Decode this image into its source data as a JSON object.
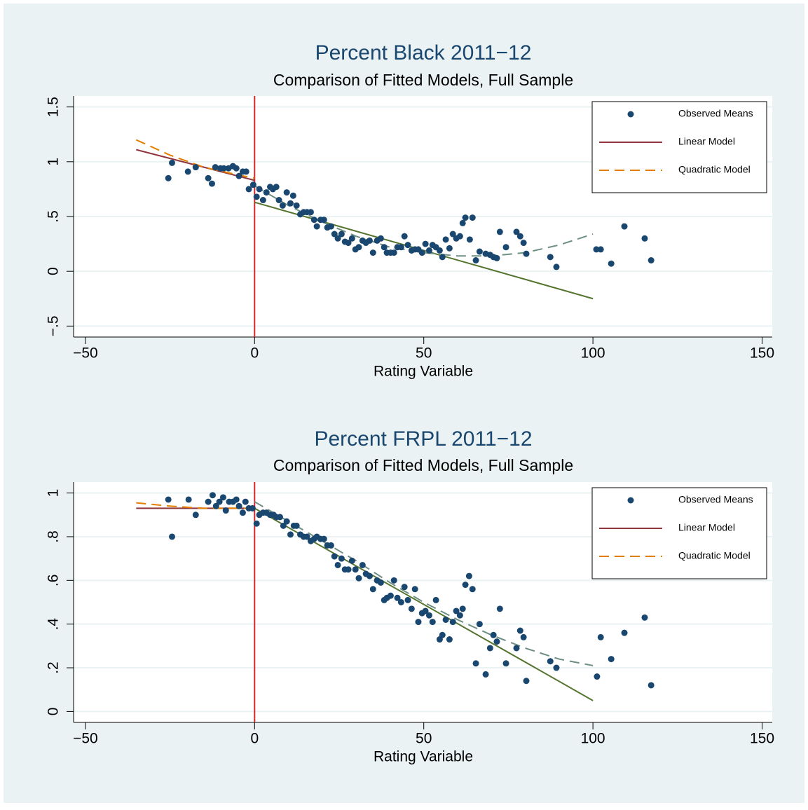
{
  "chart_data": [
    {
      "type": "scatter",
      "title": "Percent Black 2011−12",
      "subtitle": "Comparison of Fitted Models, Full Sample",
      "x_label": "Rating Variable",
      "xlim": [
        -53.5,
        153
      ],
      "ylim": [
        -0.6,
        1.6
      ],
      "xticks": [
        {
          "value": -50,
          "label": "−50"
        },
        0,
        50,
        100,
        150
      ],
      "yticks": [
        {
          "value": -0.5,
          "label": "−.5"
        },
        0,
        {
          "value": 0.5,
          "label": ".5"
        },
        1,
        1.5
      ],
      "grid": true,
      "legend": "top-right",
      "xline": 0,
      "xline_color": "#d7262b",
      "series": [
        {
          "name": "Observed Means",
          "type": "scatter",
          "color": "#1a476f",
          "x": [
            -25.5,
            -24.4,
            -19.7,
            -17.4,
            -13.7,
            -12.6,
            -11.6,
            -10.1,
            -9.1,
            -7.7,
            -6.4,
            -5.4,
            -4.6,
            -3.5,
            -2.5,
            -1.7,
            -0.4,
            0.6,
            1.4,
            2.5,
            3.5,
            4.6,
            5.4,
            6.4,
            7.2,
            8.3,
            9.5,
            10.6,
            11.4,
            12.4,
            13.5,
            14.5,
            15.5,
            16.6,
            17.6,
            18.4,
            19.5,
            20.5,
            21.5,
            22.6,
            23.6,
            24.6,
            25.7,
            26.7,
            27.7,
            28.8,
            29.8,
            30.8,
            31.9,
            32.9,
            34.0,
            35.0,
            36.2,
            37.3,
            38.3,
            39.1,
            40.2,
            41.2,
            42.2,
            43.3,
            44.3,
            45.3,
            46.4,
            47.4,
            48.4,
            49.5,
            50.5,
            51.6,
            52.6,
            53.6,
            54.7,
            55.5,
            56.5,
            57.6,
            58.6,
            59.6,
            60.7,
            61.5,
            62.3,
            63.6,
            64.4,
            65.4,
            66.5,
            68.3,
            69.6,
            70.6,
            71.6,
            72.5,
            74.3,
            77.4,
            78.5,
            79.5,
            80.3,
            87.4,
            89.2,
            101,
            102.3,
            105.4,
            109.3,
            115.3,
            117.2
          ],
          "values": [
            0.85,
            0.99,
            0.91,
            0.95,
            0.85,
            0.8,
            0.95,
            0.94,
            0.94,
            0.94,
            0.96,
            0.94,
            0.87,
            0.91,
            0.91,
            0.75,
            0.79,
            0.68,
            0.75,
            0.65,
            0.72,
            0.77,
            0.75,
            0.77,
            0.65,
            0.6,
            0.72,
            0.62,
            0.69,
            0.6,
            0.52,
            0.54,
            0.54,
            0.54,
            0.47,
            0.41,
            0.47,
            0.47,
            0.4,
            0.41,
            0.34,
            0.3,
            0.34,
            0.27,
            0.26,
            0.3,
            0.2,
            0.22,
            0.28,
            0.26,
            0.28,
            0.17,
            0.28,
            0.3,
            0.22,
            0.17,
            0.17,
            0.17,
            0.22,
            0.22,
            0.32,
            0.24,
            0.19,
            0.2,
            0.2,
            0.17,
            0.25,
            0.19,
            0.24,
            0.22,
            0.19,
            0.13,
            0.29,
            0.21,
            0.34,
            0.3,
            0.32,
            0.44,
            0.49,
            0.29,
            0.49,
            0.1,
            0.18,
            0.16,
            0.15,
            0.13,
            0.12,
            0.36,
            0.22,
            0.36,
            0.32,
            0.26,
            0.16,
            0.13,
            0.04,
            0.2,
            0.2,
            0.07,
            0.41,
            0.3,
            0.1
          ]
        },
        {
          "name": "Linear Model",
          "type": "line",
          "color": "#90353b",
          "x": [
            -35,
            0
          ],
          "values": [
            1.11,
            0.83
          ]
        },
        {
          "name": "Quadratic Model",
          "type": "line",
          "dash": true,
          "color": "#e37e00",
          "x": [
            -35,
            -25,
            -15,
            -5,
            0
          ],
          "values": [
            1.2,
            1.06,
            0.95,
            0.88,
            0.85
          ]
        },
        {
          "type": "line",
          "color": "#55752f",
          "x": [
            0,
            100
          ],
          "values": [
            0.63,
            -0.25
          ]
        },
        {
          "type": "line",
          "dash": true,
          "color": "#6e8e84",
          "x": [
            0,
            10,
            20,
            30,
            40,
            50,
            60,
            70,
            80,
            90,
            100
          ],
          "values": [
            0.78,
            0.6,
            0.45,
            0.32,
            0.22,
            0.17,
            0.14,
            0.14,
            0.17,
            0.24,
            0.34
          ]
        }
      ]
    },
    {
      "type": "scatter",
      "title": "Percent FRPL 2011−12",
      "subtitle": "Comparison of Fitted Models, Full Sample",
      "x_label": "Rating Variable",
      "xlim": [
        -53.5,
        153
      ],
      "ylim": [
        -0.05,
        1.05
      ],
      "xticks": [
        {
          "value": -50,
          "label": "−50"
        },
        0,
        50,
        100,
        150
      ],
      "yticks": [
        0,
        {
          "value": 0.2,
          "label": ".2"
        },
        {
          "value": 0.4,
          "label": ".4"
        },
        {
          "value": 0.6,
          "label": ".6"
        },
        {
          "value": 0.8,
          "label": ".8"
        },
        1
      ],
      "grid": true,
      "legend": "top-right",
      "xline": 0,
      "xline_color": "#d7262b",
      "series": [
        {
          "name": "Observed Means",
          "type": "scatter",
          "color": "#1a476f",
          "x": [
            -25.5,
            -24.4,
            -19.5,
            -17.4,
            -13.7,
            -12.4,
            -11.4,
            -10.4,
            -9.3,
            -8.5,
            -7.5,
            -6.4,
            -5.4,
            -4.6,
            -3.5,
            -2.7,
            -1.7,
            -0.6,
            0.6,
            1.4,
            2.5,
            3.5,
            4.6,
            5.6,
            6.4,
            7.5,
            8.5,
            9.5,
            10.6,
            11.6,
            12.4,
            13.5,
            14.5,
            15.5,
            16.6,
            17.6,
            18.4,
            19.5,
            20.5,
            21.5,
            22.6,
            23.6,
            24.6,
            25.7,
            26.7,
            27.7,
            28.8,
            29.8,
            30.8,
            31.9,
            32.9,
            34.0,
            35.0,
            36.2,
            37.3,
            38.3,
            39.1,
            40.2,
            41.2,
            42.2,
            43.3,
            44.3,
            45.3,
            46.4,
            47.4,
            48.4,
            49.5,
            50.5,
            51.6,
            52.6,
            53.6,
            54.7,
            55.5,
            56.5,
            57.6,
            58.6,
            59.6,
            60.7,
            61.5,
            62.3,
            63.4,
            64.4,
            65.4,
            66.5,
            68.3,
            69.6,
            70.6,
            71.6,
            72.5,
            74.3,
            77.4,
            78.5,
            79.5,
            80.3,
            87.4,
            89.2,
            101.2,
            102.3,
            105.4,
            109.3,
            115.3,
            117.2
          ],
          "values": [
            0.97,
            0.8,
            0.97,
            0.9,
            0.96,
            0.99,
            0.94,
            0.96,
            0.98,
            0.92,
            0.96,
            0.96,
            0.97,
            0.94,
            0.91,
            0.96,
            0.93,
            0.93,
            0.86,
            0.9,
            0.91,
            0.91,
            0.9,
            0.9,
            0.89,
            0.89,
            0.85,
            0.87,
            0.81,
            0.85,
            0.85,
            0.81,
            0.8,
            0.8,
            0.78,
            0.79,
            0.8,
            0.79,
            0.79,
            0.76,
            0.76,
            0.71,
            0.67,
            0.7,
            0.65,
            0.65,
            0.69,
            0.65,
            0.61,
            0.67,
            0.63,
            0.62,
            0.56,
            0.6,
            0.59,
            0.51,
            0.52,
            0.53,
            0.6,
            0.52,
            0.5,
            0.57,
            0.51,
            0.47,
            0.56,
            0.41,
            0.45,
            0.46,
            0.44,
            0.41,
            0.51,
            0.33,
            0.35,
            0.42,
            0.33,
            0.41,
            0.46,
            0.44,
            0.47,
            0.58,
            0.62,
            0.56,
            0.22,
            0.4,
            0.17,
            0.29,
            0.35,
            0.32,
            0.47,
            0.22,
            0.29,
            0.37,
            0.34,
            0.14,
            0.23,
            0.2,
            0.16,
            0.34,
            0.24,
            0.36,
            0.43,
            0.12
          ]
        },
        {
          "name": "Linear Model",
          "type": "line",
          "color": "#90353b",
          "x": [
            -35,
            0
          ],
          "values": [
            0.93,
            0.93
          ]
        },
        {
          "name": "Quadratic Model",
          "type": "line",
          "dash": true,
          "color": "#e37e00",
          "x": [
            -35,
            -25,
            -15,
            -5,
            0
          ],
          "values": [
            0.955,
            0.94,
            0.93,
            0.93,
            0.93
          ]
        },
        {
          "type": "line",
          "color": "#55752f",
          "x": [
            0,
            100
          ],
          "values": [
            0.93,
            0.05
          ]
        },
        {
          "type": "line",
          "dash": true,
          "color": "#6e8e84",
          "x": [
            0,
            10,
            20,
            30,
            40,
            50,
            60,
            70,
            80,
            90,
            100
          ],
          "values": [
            0.96,
            0.87,
            0.78,
            0.69,
            0.59,
            0.5,
            0.42,
            0.35,
            0.29,
            0.24,
            0.21
          ]
        }
      ]
    }
  ]
}
